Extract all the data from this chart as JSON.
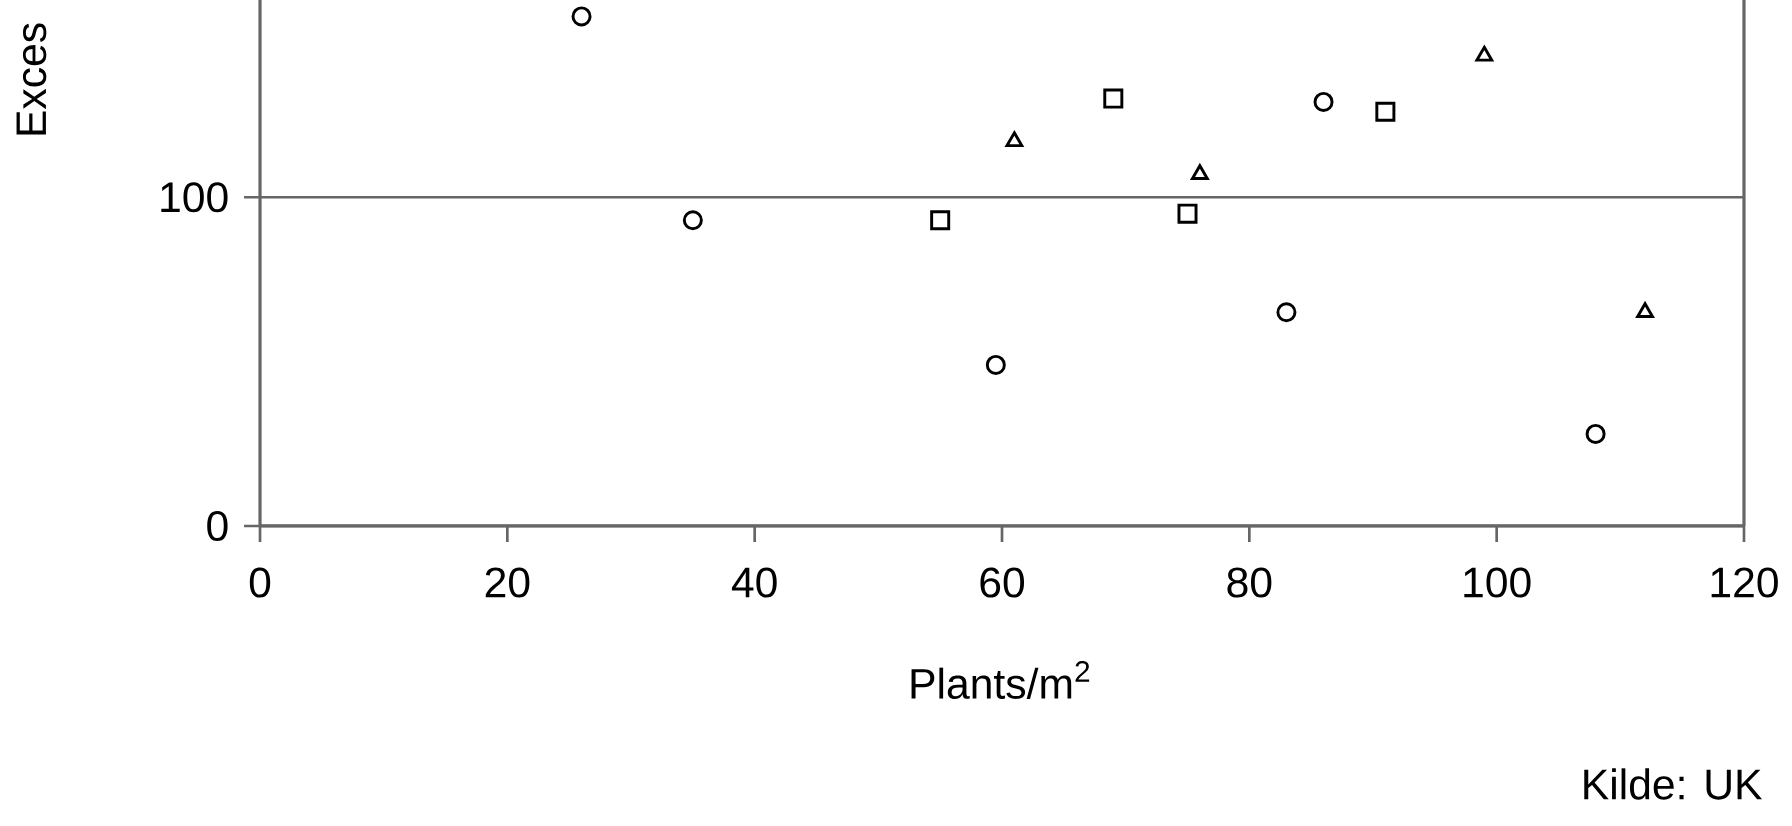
{
  "chart_data": {
    "type": "scatter",
    "xlabel": "Plants/m$^{2}$",
    "ylabel": "Exces",
    "annotations": [
      "Kilde: UK"
    ],
    "xlim": [
      0,
      120
    ],
    "xticks": [
      0,
      20,
      40,
      60,
      80,
      100,
      120
    ],
    "ylim": [
      0,
      160
    ],
    "yticks": [
      0,
      100
    ],
    "grid": "y",
    "series": [
      {
        "color": "#000000",
        "marker": "circle",
        "x": [
          26,
          35,
          59.5,
          83,
          108
        ],
        "values": [
          155,
          93,
          49,
          65,
          28
        ]
      },
      {
        "color": "#000000",
        "marker": "square",
        "x": [
          55,
          69,
          75
        ],
        "values": [
          93,
          130,
          95
        ]
      },
      {
        "color": "#000000",
        "marker": "triangle",
        "x": [
          61,
          76,
          112
        ],
        "values": [
          117,
          107,
          65
        ]
      },
      {
        "color": "#000000",
        "marker": "circle",
        "x": [
          86
        ],
        "values": [
          129
        ]
      },
      {
        "color": "#000000",
        "marker": "square",
        "x": [
          91
        ],
        "values": [
          126
        ]
      },
      {
        "color": "#000000",
        "marker": "triangle",
        "x": [
          99
        ],
        "values": [
          143
        ]
      }
    ]
  }
}
